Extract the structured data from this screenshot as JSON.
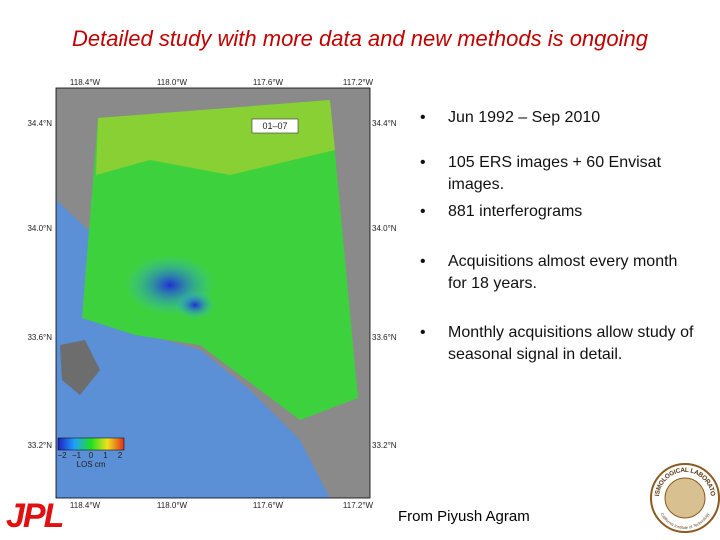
{
  "title": "Detailed study with more data and new methods is ongoing",
  "map": {
    "date_label": "01–07",
    "lon_labels": [
      "118.4°W",
      "118.0°W",
      "117.6°W",
      "117.2°W"
    ],
    "lat_labels": [
      "34.4°N",
      "34.0°N",
      "33.6°N",
      "33.2°N"
    ],
    "colorbar": {
      "ticks": [
        "−2",
        "−1",
        "0",
        "1",
        "2"
      ],
      "label": "LOS cm"
    }
  },
  "bullets": [
    "Jun 1992 – Sep 2010",
    "105 ERS images + 60 Envisat images.",
    "881 interferograms",
    "Acquisitions almost every month for 18 years.",
    "Monthly acquisitions allow study of seasonal signal in detail."
  ],
  "credit": "From Piyush Agram",
  "logos": {
    "left": "JPL",
    "right": "SEISMOLOGICAL LABORATORY",
    "right_sub": "California Institute of Technology"
  }
}
